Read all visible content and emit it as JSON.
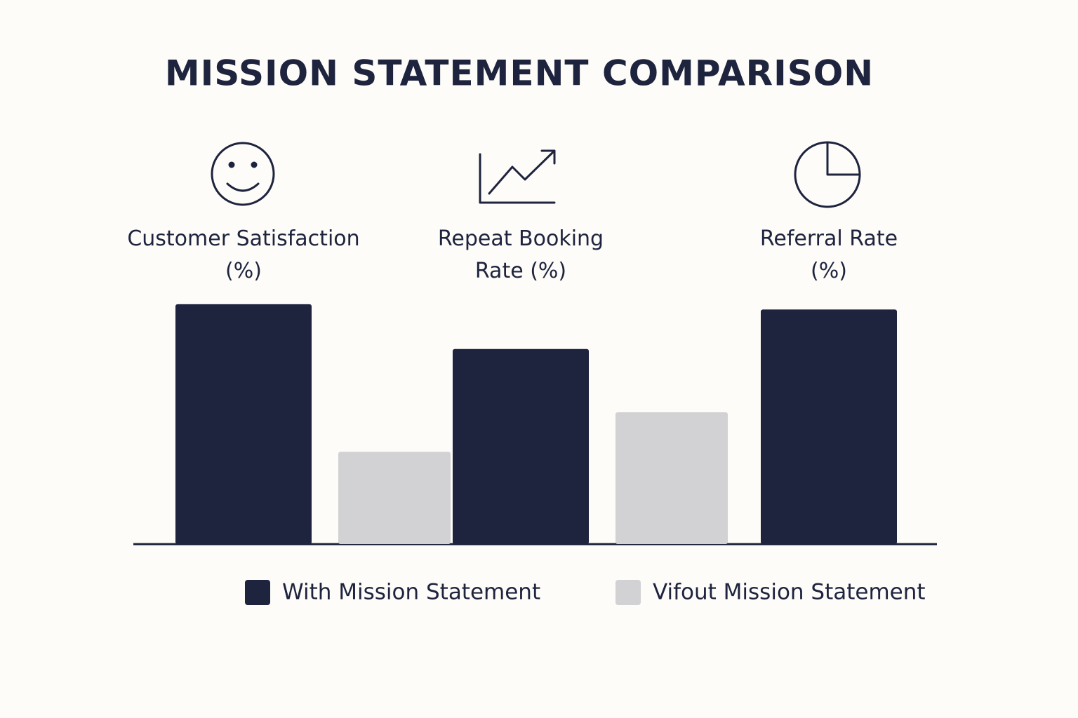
{
  "chart_data": {
    "type": "bar",
    "title": "MISSION STATEMENT COMPARISON",
    "categories": [
      "Customer Satisfaction\n(%)",
      "Repeat Booking\nRate (%)",
      "Referral Rate\n(%)"
    ],
    "series": [
      {
        "name": "With Mission Statement",
        "color": "#1e233e",
        "values": [
          91,
          74,
          89
        ]
      },
      {
        "name": "Vifout Mission Statement",
        "color": "#d2d2d4",
        "values": [
          35,
          50,
          null
        ]
      }
    ],
    "ylim": [
      0,
      100
    ]
  }
}
